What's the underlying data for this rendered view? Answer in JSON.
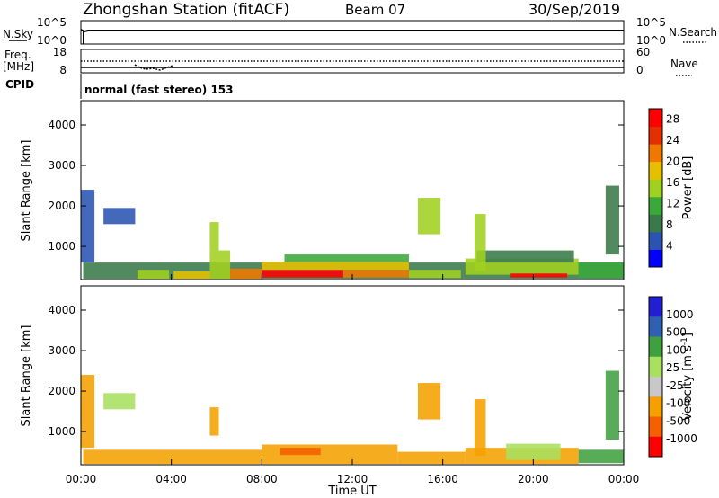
{
  "header": {
    "station": "Zhongshan Station (fitACF)",
    "beam": "Beam 07",
    "date": "30/Sep/2019"
  },
  "top_panels": {
    "nsky_label": "N.Sky",
    "nsky_ticks": [
      "10^5",
      "10^0"
    ],
    "nsearch_label": "N.Search",
    "nsearch_ticks": [
      "10^5",
      "10^0"
    ],
    "freq_label_1": "Freq.",
    "freq_label_2": "[MHz]",
    "freq_ticks": [
      "18",
      "8"
    ],
    "nave_label": "Nave",
    "nave_ticks": [
      "60",
      "0"
    ],
    "cpid_label": "CPID",
    "cpid_text": "normal (fast stereo) 153"
  },
  "x_axis": {
    "label": "Time UT",
    "ticks": [
      "00:00",
      "04:00",
      "08:00",
      "12:00",
      "16:00",
      "20:00",
      "00:00"
    ]
  },
  "colors": {
    "power": [
      "#0000ff",
      "#2a54b0",
      "#3a7a4a",
      "#3aa83a",
      "#a0d020",
      "#e6c000",
      "#f07800",
      "#e23000",
      "#ff0000"
    ],
    "velocity": [
      "#ff0000",
      "#f56000",
      "#f5a000",
      "#c8c8c8",
      "#a8e060",
      "#40a040",
      "#3060b0",
      "#2020d0"
    ]
  },
  "chart_data": [
    {
      "type": "heatmap",
      "title": "Power",
      "ylabel": "Slant Range [km]",
      "xlabel": "",
      "y_ticks": [
        "1000",
        "2000",
        "3000",
        "4000"
      ],
      "xlim_hours": [
        0,
        24
      ],
      "ylim_km": [
        180,
        4600
      ],
      "colorbar_label": "Power [dB]",
      "colorbar_ticks": [
        "4",
        "8",
        "12",
        "16",
        "20",
        "24",
        "28"
      ],
      "colorbar_range": [
        0,
        30
      ],
      "regions": [
        {
          "t0": 0.1,
          "t1": 24,
          "r0": 200,
          "r1": 600,
          "v": 8
        },
        {
          "t0": 2.5,
          "t1": 3.9,
          "r0": 200,
          "r1": 420,
          "v": 14
        },
        {
          "t0": 4.1,
          "t1": 5.7,
          "r0": 200,
          "r1": 380,
          "v": 18
        },
        {
          "t0": 5.7,
          "t1": 6.6,
          "r0": 200,
          "r1": 900,
          "v": 14
        },
        {
          "t0": 6.6,
          "t1": 8.0,
          "r0": 200,
          "r1": 450,
          "v": 20
        },
        {
          "t0": 8.0,
          "t1": 11.6,
          "r0": 230,
          "r1": 420,
          "v": 28
        },
        {
          "t0": 8.0,
          "t1": 14.5,
          "r0": 420,
          "r1": 620,
          "v": 18
        },
        {
          "t0": 9.0,
          "t1": 14.5,
          "r0": 620,
          "r1": 800,
          "v": 10
        },
        {
          "t0": 11.6,
          "t1": 14.5,
          "r0": 230,
          "r1": 420,
          "v": 22
        },
        {
          "t0": 14.5,
          "t1": 16.8,
          "r0": 220,
          "r1": 420,
          "v": 14
        },
        {
          "t0": 17.0,
          "t1": 22.0,
          "r0": 300,
          "r1": 700,
          "v": 16
        },
        {
          "t0": 17.5,
          "t1": 21.8,
          "r0": 600,
          "r1": 900,
          "v": 9
        },
        {
          "t0": 19.0,
          "t1": 21.5,
          "r0": 230,
          "r1": 330,
          "v": 28
        },
        {
          "t0": 22.0,
          "t1": 24.0,
          "r0": 220,
          "r1": 600,
          "v": 10
        },
        {
          "t0": 1.0,
          "t1": 2.4,
          "r0": 1550,
          "r1": 1950,
          "v": 6
        },
        {
          "t0": 14.9,
          "t1": 15.9,
          "r0": 1300,
          "r1": 2200,
          "v": 14
        },
        {
          "t0": 5.7,
          "t1": 6.1,
          "r0": 900,
          "r1": 1600,
          "v": 14
        },
        {
          "t0": 17.4,
          "t1": 17.9,
          "r0": 400,
          "r1": 1800,
          "v": 14
        },
        {
          "t0": 0.0,
          "t1": 0.6,
          "r0": 600,
          "r1": 2400,
          "v": 6
        },
        {
          "t0": 23.2,
          "t1": 23.8,
          "r0": 800,
          "r1": 2500,
          "v": 8
        }
      ]
    },
    {
      "type": "heatmap",
      "title": "Velocity",
      "ylabel": "Slant Range [km]",
      "xlabel": "Time UT",
      "y_ticks": [
        "1000",
        "2000",
        "3000",
        "4000"
      ],
      "xlim_hours": [
        0,
        24
      ],
      "ylim_km": [
        180,
        4600
      ],
      "colorbar_label": "Velocity [m s^-1]",
      "colorbar_ticks": [
        "1000",
        "500",
        "100",
        "25",
        "-25",
        "-100",
        "-500",
        "-1000"
      ],
      "regions": [
        {
          "t0": 0.1,
          "t1": 8.0,
          "r0": 200,
          "r1": 550,
          "v": -100
        },
        {
          "t0": 8.0,
          "t1": 14.0,
          "r0": 200,
          "r1": 680,
          "v": -100
        },
        {
          "t0": 8.8,
          "t1": 10.6,
          "r0": 420,
          "r1": 600,
          "v": -700
        },
        {
          "t0": 14.0,
          "t1": 17.0,
          "r0": 200,
          "r1": 500,
          "v": -100
        },
        {
          "t0": 17.0,
          "t1": 22.0,
          "r0": 200,
          "r1": 600,
          "v": -100
        },
        {
          "t0": 18.8,
          "t1": 21.2,
          "r0": 300,
          "r1": 700,
          "v": 0
        },
        {
          "t0": 22.0,
          "t1": 24.0,
          "r0": 220,
          "r1": 550,
          "v": 50
        },
        {
          "t0": 1.0,
          "t1": 2.4,
          "r0": 1550,
          "r1": 1950,
          "v": 0
        },
        {
          "t0": 14.9,
          "t1": 15.9,
          "r0": 1300,
          "r1": 2200,
          "v": -100
        },
        {
          "t0": 5.7,
          "t1": 6.1,
          "r0": 900,
          "r1": 1600,
          "v": -100
        },
        {
          "t0": 17.4,
          "t1": 17.9,
          "r0": 400,
          "r1": 1800,
          "v": -100
        },
        {
          "t0": 0.0,
          "t1": 0.6,
          "r0": 600,
          "r1": 2400,
          "v": -100
        },
        {
          "t0": 23.2,
          "t1": 23.8,
          "r0": 800,
          "r1": 2500,
          "v": 50
        }
      ]
    }
  ]
}
